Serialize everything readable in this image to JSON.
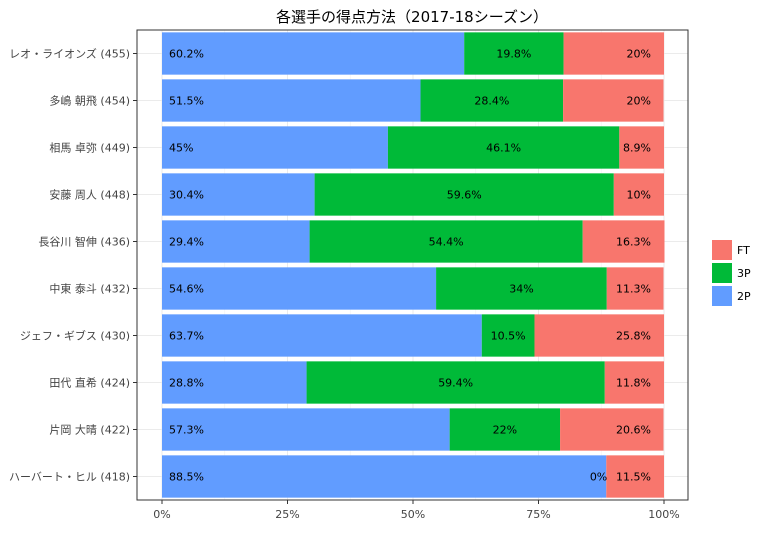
{
  "chart_data": {
    "type": "bar",
    "orientation": "horizontal",
    "stacked": "percent",
    "title": "各選手の得点方法（2017-18シーズン）",
    "xlabel": "",
    "ylabel": "",
    "xlim": [
      0,
      1
    ],
    "x_ticks": [
      "0%",
      "25%",
      "50%",
      "75%",
      "100%"
    ],
    "grid": true,
    "legend_position": "right",
    "categories": [
      "レオ・ライオンズ (455)",
      "多嶋 朝飛 (454)",
      "相馬 卓弥 (449)",
      "安藤 周人 (448)",
      "長谷川 智伸 (436)",
      "中東 泰斗 (432)",
      "ジェフ・ギブス (430)",
      "田代 直希 (424)",
      "片岡 大晴 (422)",
      "ハーバート・ヒル (418)"
    ],
    "series": [
      {
        "name": "2P",
        "color": "#619CFF",
        "values": [
          0.602,
          0.515,
          0.45,
          0.304,
          0.294,
          0.546,
          0.637,
          0.288,
          0.573,
          0.885
        ],
        "labels": [
          "60.2%",
          "51.5%",
          "45%",
          "30.4%",
          "29.4%",
          "54.6%",
          "63.7%",
          "28.8%",
          "57.3%",
          "88.5%"
        ]
      },
      {
        "name": "3P",
        "color": "#00BA38",
        "values": [
          0.198,
          0.284,
          0.461,
          0.596,
          0.544,
          0.34,
          0.105,
          0.594,
          0.22,
          0.0
        ],
        "labels": [
          "19.8%",
          "28.4%",
          "46.1%",
          "59.6%",
          "54.4%",
          "34%",
          "10.5%",
          "59.4%",
          "22%",
          "0%"
        ]
      },
      {
        "name": "FT",
        "color": "#F8766D",
        "values": [
          0.2,
          0.2,
          0.089,
          0.1,
          0.163,
          0.113,
          0.258,
          0.118,
          0.206,
          0.115
        ],
        "labels": [
          "20%",
          "20%",
          "8.9%",
          "10%",
          "16.3%",
          "11.3%",
          "25.8%",
          "11.8%",
          "20.6%",
          "11.5%"
        ]
      }
    ],
    "legend_order": [
      "FT",
      "3P",
      "2P"
    ]
  }
}
